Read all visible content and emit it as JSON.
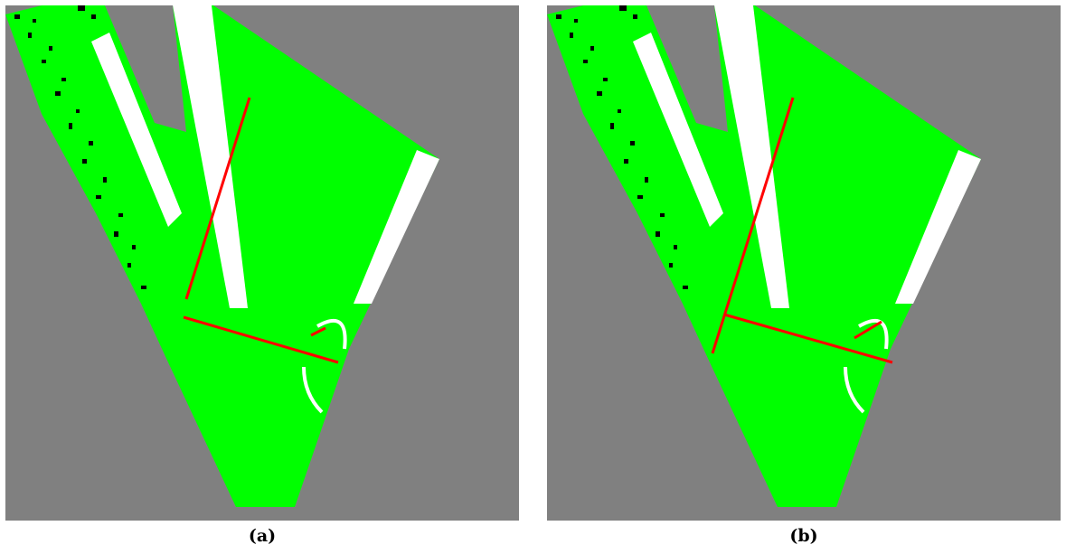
{
  "colors": {
    "background": "#808080",
    "drivable": "#00ff00",
    "lane_marking": "#ffffff",
    "obstacle": "#000000",
    "detected_line": "#ff0000"
  },
  "figures": [
    {
      "id": "a",
      "caption": "(a)"
    },
    {
      "id": "b",
      "caption": "(b)"
    }
  ]
}
